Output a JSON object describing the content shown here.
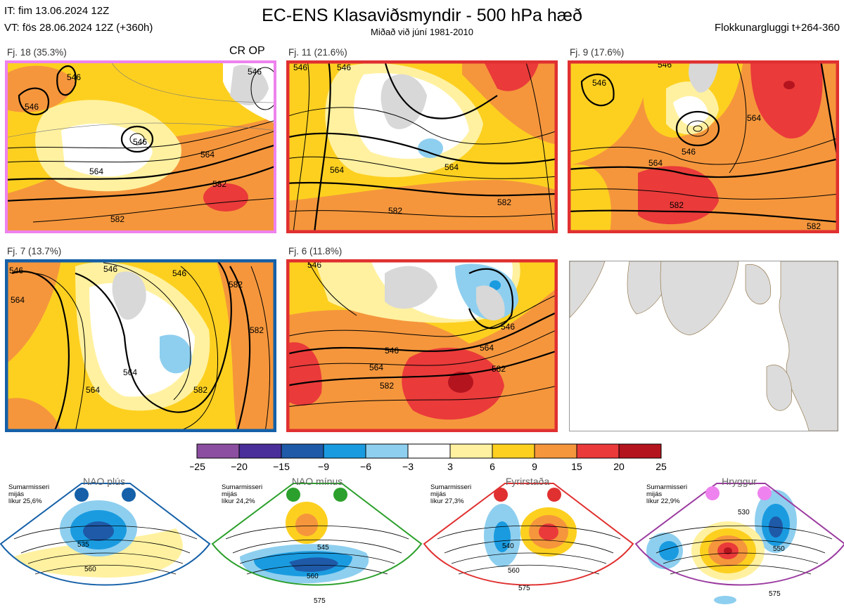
{
  "header": {
    "init_time": "IT: fim 13.06.2024 12Z",
    "valid_time": "VT: fös 28.06.2024 12Z  (+360h)",
    "title": "EC-ENS Klasaviðsmyndir - 500 hPa hæð",
    "subtitle": "Miðað við júní 1981-2010",
    "cluster_window": "Flokkunargluggi t+264-360"
  },
  "panels": [
    {
      "label": "Fj. 18 (35.3%)",
      "tag": "CR OP",
      "border": "#ee82ee",
      "contours": [
        "546",
        "546",
        "546",
        "546",
        "564",
        "564",
        "582",
        "582"
      ]
    },
    {
      "label": "Fj. 11 (21.6%)",
      "border": "#e03030",
      "contours": [
        "546",
        "546",
        "564",
        "564",
        "582",
        "582"
      ]
    },
    {
      "label": "Fj. 9 (17.6%)",
      "border": "#e03030",
      "contours": [
        "546",
        "546",
        "546",
        "564",
        "564",
        "582",
        "582"
      ]
    },
    {
      "label": "Fj. 7 (13.7%)",
      "border": "#1560a8",
      "contours": [
        "546",
        "546",
        "546",
        "564",
        "564",
        "564",
        "582",
        "582",
        "582"
      ]
    },
    {
      "label": "Fj. 6 (11.8%)",
      "border": "#e03030",
      "contours": [
        "546",
        "546",
        "546",
        "564",
        "564",
        "582",
        "582"
      ]
    }
  ],
  "colorbar": {
    "colors": [
      "#8c4ea0",
      "#4a2f9a",
      "#1e5aa8",
      "#1a9be0",
      "#8ecfef",
      "#ffffff",
      "#fff1a0",
      "#fdd020",
      "#f5963c",
      "#ea3a3a",
      "#b4141e"
    ],
    "ticks": [
      "−25",
      "−20",
      "−15",
      "−9",
      "−6",
      "−3",
      "3",
      "6",
      "9",
      "15",
      "20",
      "25"
    ]
  },
  "teleconnections": [
    {
      "name": "NAO plús",
      "stats": [
        "Sumarmisseri",
        "mijás",
        "líkur 25,6%"
      ],
      "color": "#1560a8",
      "contours": [
        "535",
        "560"
      ]
    },
    {
      "name": "NAO mínus",
      "stats": [
        "Sumarmisseri",
        "mijás",
        "líkur 24,2%"
      ],
      "color": "#2ca02c",
      "contours": [
        "545",
        "560",
        "575"
      ]
    },
    {
      "name": "Fyrirstaða",
      "stats": [
        "Sumarmisseri",
        "mijás",
        "líkur 27,3%"
      ],
      "color": "#e03030",
      "contours": [
        "540",
        "560",
        "575"
      ]
    },
    {
      "name": "Hryggur",
      "stats": [
        "Sumarmisseri",
        "mijás",
        "líkur 22,9%"
      ],
      "color": "#9b3ca0",
      "contours": [
        "530",
        "550",
        "575"
      ]
    }
  ]
}
